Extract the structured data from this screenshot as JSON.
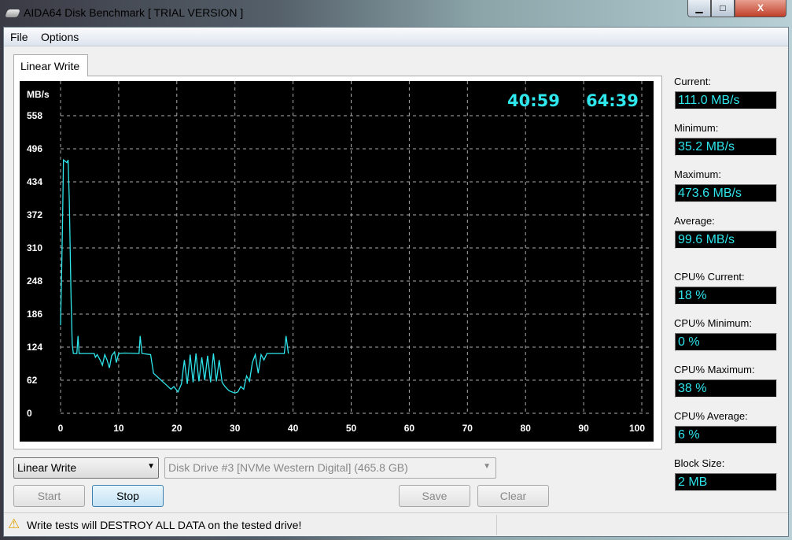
{
  "window": {
    "title": "AIDA64 Disk Benchmark  [ TRIAL VERSION ]",
    "minimize": "▁",
    "maximize": "□",
    "close": "X"
  },
  "menu": [
    "File",
    "Options"
  ],
  "tab": "Linear Write",
  "timers": {
    "elapsed": "40:59",
    "total": "64:39"
  },
  "stats": [
    {
      "label": "Current:",
      "value": "111.0 MB/s"
    },
    {
      "label": "Minimum:",
      "value": "35.2 MB/s"
    },
    {
      "label": "Maximum:",
      "value": "473.6 MB/s"
    },
    {
      "label": "Average:",
      "value": "99.6 MB/s"
    },
    {
      "label": "CPU% Current:",
      "value": "18 %"
    },
    {
      "label": "CPU% Minimum:",
      "value": "0 %"
    },
    {
      "label": "CPU% Maximum:",
      "value": "38 %"
    },
    {
      "label": "CPU% Average:",
      "value": "6 %"
    },
    {
      "label": "Block Size:",
      "value": "2 MB"
    }
  ],
  "controls": {
    "test_select": "Linear Write",
    "drive_select": "Disk Drive #3  [NVMe    Western Digital]  (465.8 GB)",
    "start": "Start",
    "stop": "Stop",
    "save": "Save",
    "clear": "Clear"
  },
  "status": "Write tests will DESTROY ALL DATA on the tested drive!",
  "colors": {
    "line": "#2ee6ec",
    "chart_bg": "#000000",
    "timer": "#2ee6ec"
  },
  "chart_data": {
    "type": "line",
    "ylabel": "MB/s",
    "xlabel": "%",
    "xlim": [
      0,
      100
    ],
    "ylim": [
      0,
      558
    ],
    "xticks": [
      0,
      10,
      20,
      30,
      40,
      50,
      60,
      70,
      80,
      90,
      100
    ],
    "yticks": [
      0,
      62,
      124,
      186,
      248,
      310,
      372,
      434,
      496,
      558
    ],
    "grid": true,
    "x": [
      0,
      0.3,
      0.5,
      1.1,
      1.3,
      1.5,
      1.8,
      2.0,
      2.2,
      2.8,
      3.0,
      3.2,
      5.8,
      6.0,
      6.3,
      6.8,
      7.2,
      7.6,
      8.0,
      8.4,
      8.8,
      9.3,
      9.6,
      10.0,
      11,
      13.5,
      13.7,
      14.0,
      15.5,
      16.0,
      17,
      18,
      19,
      19.5,
      20.2,
      20.8,
      21.3,
      21.8,
      22.3,
      22.8,
      23.3,
      23.8,
      24.3,
      24.8,
      25.3,
      25.8,
      26.3,
      26.8,
      27.3,
      27.8,
      28.3,
      29,
      30,
      30.5,
      31,
      31.5,
      32,
      32.5,
      33,
      33.5,
      34,
      34.5,
      35,
      35.5,
      36,
      38.5,
      38.8,
      39.2
    ],
    "y": [
      165,
      330,
      475,
      470,
      475,
      400,
      220,
      130,
      112,
      112,
      145,
      112,
      112,
      105,
      110,
      100,
      90,
      110,
      100,
      85,
      108,
      115,
      95,
      112,
      113,
      112,
      145,
      112,
      110,
      75,
      65,
      55,
      45,
      50,
      40,
      55,
      100,
      55,
      110,
      58,
      112,
      60,
      105,
      62,
      108,
      58,
      112,
      60,
      100,
      58,
      50,
      42,
      38,
      40,
      50,
      45,
      70,
      60,
      95,
      110,
      75,
      110,
      100,
      112,
      112,
      112,
      145,
      112
    ]
  }
}
